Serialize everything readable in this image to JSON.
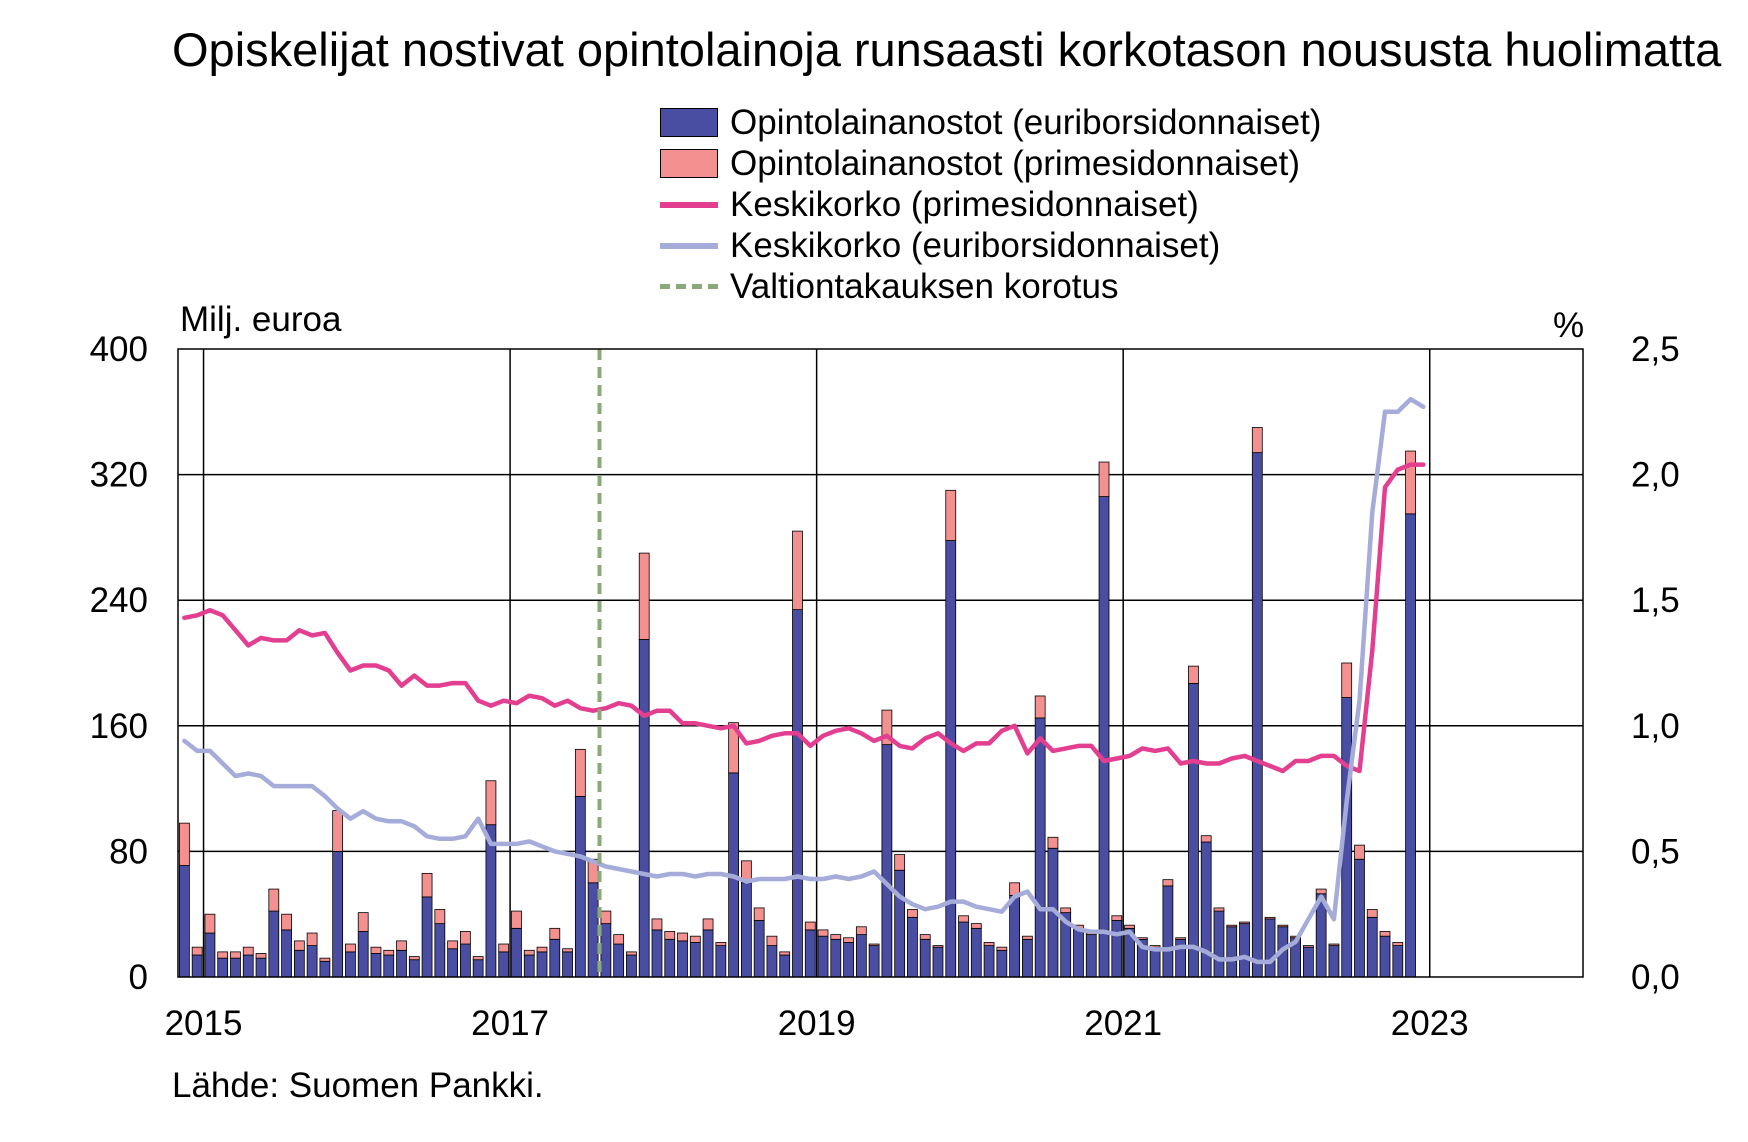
{
  "title": "Opiskelijat nostivat opintolainoja runsaasti korkotason noususta huolimatta",
  "source": "Lähde: Suomen Pankki.",
  "colors": {
    "euribor_bar": "#4a4ea3",
    "prime_bar": "#f39191",
    "prime_line": "#e33e8f",
    "euribor_line": "#a6acd9",
    "guarantee_line": "#8aa878"
  },
  "legend": [
    {
      "key": "euribor_bar",
      "label": "Opintolainanostot (euriborsidonnaiset)",
      "kind": "bar"
    },
    {
      "key": "prime_bar",
      "label": "Opintolainanostot (primesidonnaiset)",
      "kind": "bar"
    },
    {
      "key": "prime_line",
      "label": "Keskikorko (primesidonnaiset)",
      "kind": "line"
    },
    {
      "key": "euribor_line",
      "label": "Keskikorko (euriborsidonnaiset)",
      "kind": "line"
    },
    {
      "key": "guarantee_line",
      "label": "Valtiontakauksen korotus",
      "kind": "dash"
    }
  ],
  "chart_data": {
    "type": "bar",
    "y_left": {
      "label": "Milj. euroa",
      "min": 0,
      "max": 400,
      "ticks": [
        "0",
        "80",
        "160",
        "240",
        "320",
        "400"
      ]
    },
    "y_right": {
      "label": "%",
      "min": 0,
      "max": 2.5,
      "ticks": [
        "0,0",
        "0,5",
        "1,0",
        "1,5",
        "2,0",
        "2,5"
      ]
    },
    "x_ticks": [
      "2015",
      "2017",
      "2019",
      "2021",
      "2023"
    ],
    "x_range": [
      "2014-11",
      "2023-12"
    ],
    "grid": true,
    "guarantee_raise": "2017-08",
    "months": [
      "2014-11",
      "2014-12",
      "2015-01",
      "2015-02",
      "2015-03",
      "2015-04",
      "2015-05",
      "2015-06",
      "2015-07",
      "2015-08",
      "2015-09",
      "2015-10",
      "2015-11",
      "2015-12",
      "2016-01",
      "2016-02",
      "2016-03",
      "2016-04",
      "2016-05",
      "2016-06",
      "2016-07",
      "2016-08",
      "2016-09",
      "2016-10",
      "2016-11",
      "2016-12",
      "2017-01",
      "2017-02",
      "2017-03",
      "2017-04",
      "2017-05",
      "2017-06",
      "2017-07",
      "2017-08",
      "2017-09",
      "2017-10",
      "2017-11",
      "2017-12",
      "2018-01",
      "2018-02",
      "2018-03",
      "2018-04",
      "2018-05",
      "2018-06",
      "2018-07",
      "2018-08",
      "2018-09",
      "2018-10",
      "2018-11",
      "2018-12",
      "2019-01",
      "2019-02",
      "2019-03",
      "2019-04",
      "2019-05",
      "2019-06",
      "2019-07",
      "2019-08",
      "2019-09",
      "2019-10",
      "2019-11",
      "2019-12",
      "2020-01",
      "2020-02",
      "2020-03",
      "2020-04",
      "2020-05",
      "2020-06",
      "2020-07",
      "2020-08",
      "2020-09",
      "2020-10",
      "2020-11",
      "2020-12",
      "2021-01",
      "2021-02",
      "2021-03",
      "2021-04",
      "2021-05",
      "2021-06",
      "2021-07",
      "2021-08",
      "2021-09",
      "2021-10",
      "2021-11",
      "2021-12",
      "2022-01",
      "2022-02",
      "2022-03",
      "2022-04",
      "2022-05",
      "2022-06",
      "2022-07",
      "2022-08",
      "2022-09",
      "2022-10",
      "2022-11",
      "2022-12"
    ],
    "series": [
      {
        "name": "Opintolainanostot (euriborsidonnaiset)",
        "axis": "left",
        "kind": "bar",
        "stack": "nostot",
        "values": [
          71,
          14,
          28,
          12,
          12,
          14,
          12,
          42,
          30,
          17,
          20,
          10,
          80,
          16,
          29,
          15,
          14,
          17,
          11,
          51,
          34,
          18,
          21,
          11,
          97,
          16,
          31,
          14,
          16,
          24,
          16,
          115,
          60,
          34,
          21,
          14,
          215,
          30,
          24,
          23,
          22,
          30,
          20,
          130,
          60,
          36,
          20,
          14,
          234,
          30,
          26,
          24,
          22,
          27,
          20,
          148,
          68,
          38,
          24,
          19,
          278,
          35,
          31,
          20,
          17,
          52,
          24,
          165,
          82,
          41,
          31,
          27,
          306,
          36,
          31,
          24,
          19,
          58,
          24,
          187,
          86,
          42,
          32,
          34,
          334,
          37,
          32,
          25,
          19,
          53,
          20,
          178,
          75,
          38,
          26,
          20,
          295,
          0
        ]
      },
      {
        "name": "Opintolainanostot (primesidonnaiset)",
        "axis": "left",
        "kind": "bar",
        "stack": "nostot",
        "values": [
          27,
          5,
          12,
          4,
          4,
          5,
          3,
          14,
          10,
          6,
          8,
          2,
          26,
          5,
          12,
          4,
          3,
          6,
          2,
          15,
          9,
          5,
          8,
          2,
          28,
          5,
          11,
          3,
          3,
          7,
          2,
          30,
          15,
          8,
          6,
          2,
          55,
          7,
          5,
          5,
          4,
          7,
          2,
          32,
          14,
          8,
          6,
          2,
          50,
          5,
          4,
          3,
          3,
          5,
          1,
          22,
          10,
          5,
          3,
          1,
          32,
          4,
          3,
          2,
          2,
          8,
          2,
          14,
          7,
          3,
          2,
          1,
          22,
          3,
          2,
          1,
          1,
          4,
          1,
          11,
          4,
          2,
          1,
          1,
          16,
          1,
          1,
          1,
          1,
          3,
          1,
          22,
          9,
          5,
          3,
          2,
          40,
          0
        ]
      },
      {
        "name": "Keskikorko (primesidonnaiset)",
        "axis": "right",
        "kind": "line",
        "values": [
          1.43,
          1.44,
          1.46,
          1.44,
          1.38,
          1.32,
          1.35,
          1.34,
          1.34,
          1.38,
          1.36,
          1.37,
          1.29,
          1.22,
          1.24,
          1.24,
          1.22,
          1.16,
          1.2,
          1.16,
          1.16,
          1.17,
          1.17,
          1.1,
          1.08,
          1.1,
          1.09,
          1.12,
          1.11,
          1.08,
          1.1,
          1.07,
          1.06,
          1.07,
          1.09,
          1.08,
          1.04,
          1.06,
          1.06,
          1.01,
          1.01,
          1.0,
          0.99,
          1.0,
          0.93,
          0.94,
          0.96,
          0.97,
          0.97,
          0.92,
          0.96,
          0.98,
          0.99,
          0.97,
          0.94,
          0.96,
          0.92,
          0.91,
          0.95,
          0.97,
          0.93,
          0.9,
          0.93,
          0.93,
          0.98,
          1.0,
          0.89,
          0.95,
          0.9,
          0.91,
          0.92,
          0.92,
          0.86,
          0.87,
          0.88,
          0.91,
          0.9,
          0.91,
          0.85,
          0.86,
          0.85,
          0.85,
          0.87,
          0.88,
          0.86,
          0.84,
          0.82,
          0.86,
          0.86,
          0.88,
          0.88,
          0.84,
          0.82,
          1.3,
          1.95,
          2.02,
          2.04,
          2.04
        ]
      },
      {
        "name": "Keskikorko (euriborsidonnaiset)",
        "axis": "right",
        "kind": "line",
        "values": [
          0.94,
          0.9,
          0.9,
          0.85,
          0.8,
          0.81,
          0.8,
          0.76,
          0.76,
          0.76,
          0.76,
          0.72,
          0.67,
          0.63,
          0.66,
          0.63,
          0.62,
          0.62,
          0.6,
          0.56,
          0.55,
          0.55,
          0.56,
          0.63,
          0.53,
          0.53,
          0.53,
          0.54,
          0.52,
          0.5,
          0.49,
          0.48,
          0.46,
          0.44,
          0.43,
          0.42,
          0.41,
          0.4,
          0.41,
          0.41,
          0.4,
          0.41,
          0.41,
          0.4,
          0.38,
          0.39,
          0.39,
          0.39,
          0.4,
          0.39,
          0.39,
          0.4,
          0.39,
          0.4,
          0.42,
          0.37,
          0.32,
          0.29,
          0.27,
          0.28,
          0.3,
          0.3,
          0.28,
          0.27,
          0.26,
          0.32,
          0.34,
          0.27,
          0.27,
          0.22,
          0.19,
          0.18,
          0.18,
          0.17,
          0.18,
          0.12,
          0.11,
          0.11,
          0.12,
          0.12,
          0.1,
          0.07,
          0.07,
          0.08,
          0.06,
          0.06,
          0.11,
          0.14,
          0.23,
          0.32,
          0.23,
          0.7,
          1.1,
          1.85,
          2.25,
          2.25,
          2.3,
          2.27
        ]
      }
    ]
  }
}
